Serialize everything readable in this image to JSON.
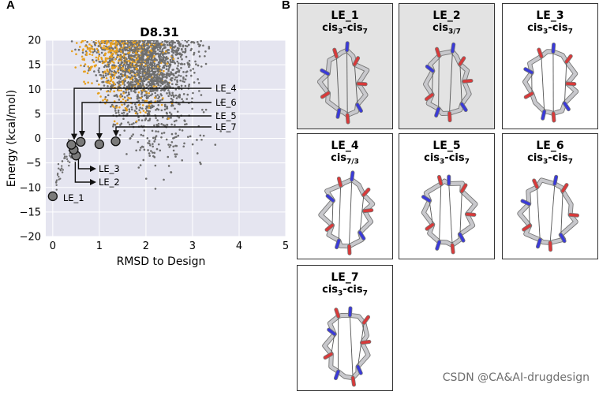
{
  "panel_a_label": "A",
  "panel_b_label": "B",
  "chart_data": {
    "type": "scatter",
    "title": "D8.31",
    "xlabel": "RMSD to Design",
    "ylabel": "Energy (kcal/mol)",
    "xlim": [
      -0.15,
      5
    ],
    "ylim": [
      -20,
      20
    ],
    "xticks": [
      0,
      1,
      2,
      3,
      4,
      5
    ],
    "yticks": [
      -20,
      -15,
      -10,
      -5,
      0,
      5,
      10,
      15,
      20
    ],
    "grid": true,
    "background_color": "#e5e5f0",
    "series": [
      {
        "name": "gray decoys",
        "color": "#6e6e6e",
        "x_center": 2.0,
        "x_spread": 0.55,
        "y_floor": -12,
        "y_top": 20
      },
      {
        "name": "orange decoys",
        "color": "#e6a020",
        "x_center": 1.5,
        "x_spread": 0.5,
        "y_floor": 2,
        "y_top": 20
      }
    ],
    "low_energy_points": [
      {
        "label": "LE_1",
        "x": 0.0,
        "y": -11.8,
        "label_pos": "right"
      },
      {
        "label": "LE_2",
        "x": 0.5,
        "y": -3.5,
        "label_pos": "arrow-down"
      },
      {
        "label": "LE_3",
        "x": 0.45,
        "y": -2.3,
        "label_pos": "arrow-down"
      },
      {
        "label": "LE_4",
        "x": 0.4,
        "y": -1.3,
        "label_pos": "arrow-up"
      },
      {
        "label": "LE_5",
        "x": 1.0,
        "y": -1.2,
        "label_pos": "arrow-up"
      },
      {
        "label": "LE_6",
        "x": 0.6,
        "y": -0.7,
        "label_pos": "arrow-up"
      },
      {
        "label": "LE_7",
        "x": 1.35,
        "y": -0.6,
        "label_pos": "arrow-up"
      }
    ]
  },
  "structures": [
    {
      "name": "LE_1",
      "conf_base": "cis",
      "conf_parts": [
        [
          "3",
          "-cis"
        ],
        [
          "7",
          ""
        ]
      ],
      "shaded": true
    },
    {
      "name": "LE_2",
      "conf_base": "cis",
      "conf_parts": [
        [
          "3/7",
          ""
        ]
      ],
      "shaded": true
    },
    {
      "name": "LE_3",
      "conf_base": "cis",
      "conf_parts": [
        [
          "3",
          "-cis"
        ],
        [
          "7",
          ""
        ]
      ],
      "shaded": false
    },
    {
      "name": "LE_4",
      "conf_base": "cis",
      "conf_parts": [
        [
          "7/3",
          ""
        ]
      ],
      "shaded": false
    },
    {
      "name": "LE_5",
      "conf_base": "cis",
      "conf_parts": [
        [
          "3",
          "-cis"
        ],
        [
          "7",
          ""
        ]
      ],
      "shaded": false
    },
    {
      "name": "LE_6",
      "conf_base": "cis",
      "conf_parts": [
        [
          "3",
          "-cis"
        ],
        [
          "7",
          ""
        ]
      ],
      "shaded": false
    },
    {
      "name": "LE_7",
      "conf_base": "cis",
      "conf_parts": [
        [
          "3",
          "-cis"
        ],
        [
          "7",
          ""
        ]
      ],
      "shaded": false
    }
  ],
  "colors": {
    "carbon": "#c8c8cc",
    "nitrogen": "#3a3ad8",
    "oxygen": "#d83a3a",
    "bond": "#555555"
  },
  "watermark": "CSDN @CA&AI-drugdesign"
}
